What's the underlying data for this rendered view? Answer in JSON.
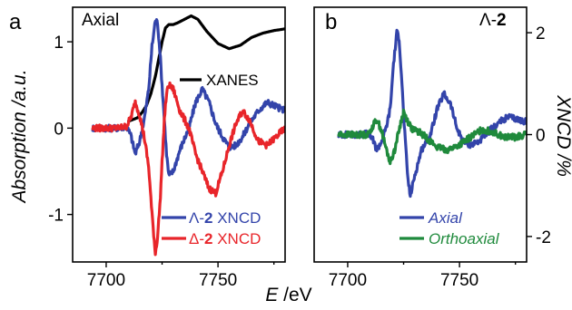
{
  "chart_data": [
    {
      "type": "line",
      "panel_letter": "a",
      "title": "Axial",
      "ylabel": "Absorption /a.u.",
      "xlim": [
        7685,
        7780
      ],
      "ylim": [
        -1.55,
        1.4
      ],
      "xticks": [
        7700,
        7750
      ],
      "yticks": [
        -1,
        0,
        1
      ],
      "legend": [
        {
          "prefix": "Λ-",
          "bold": "2",
          "suffix": " XNCD",
          "color": "#3344aa"
        },
        {
          "prefix": "Δ-",
          "bold": "2",
          "suffix": " XNCD",
          "color": "#e8252a"
        }
      ],
      "inline_label": "XANES",
      "series": [
        {
          "name": "XANES",
          "color": "#000000",
          "x": [
            7710,
            7714,
            7716,
            7718,
            7720,
            7722,
            7723.5,
            7725,
            7726.5,
            7728,
            7730,
            7732,
            7735,
            7738,
            7741,
            7745,
            7750,
            7755,
            7760,
            7765,
            7770,
            7775,
            7780
          ],
          "y": [
            0.08,
            0.12,
            0.18,
            0.26,
            0.4,
            0.6,
            0.8,
            1.0,
            1.16,
            1.2,
            1.2,
            1.22,
            1.26,
            1.3,
            1.26,
            1.12,
            0.98,
            0.92,
            0.96,
            1.05,
            1.1,
            1.13,
            1.15
          ]
        },
        {
          "name": "Λ-2 XNCD",
          "color": "#3344aa",
          "x": [
            7694,
            7700,
            7705,
            7709,
            7711,
            7713,
            7715,
            7717,
            7719,
            7720.5,
            7722,
            7723,
            7724,
            7725,
            7726,
            7727,
            7728,
            7730,
            7733,
            7737,
            7740,
            7743,
            7746,
            7749,
            7752,
            7755,
            7758,
            7761,
            7764,
            7768,
            7772,
            7776,
            7780
          ],
          "y": [
            0,
            0,
            0,
            0.02,
            -0.08,
            -0.3,
            -0.15,
            0.1,
            0.45,
            0.95,
            1.25,
            1.22,
            0.9,
            0.5,
            0.1,
            -0.3,
            -0.55,
            -0.5,
            -0.25,
            0,
            0.3,
            0.45,
            0.3,
            0.05,
            -0.1,
            -0.22,
            -0.2,
            -0.1,
            0.05,
            0.2,
            0.3,
            0.25,
            0.2
          ]
        },
        {
          "name": "Δ-2 XNCD",
          "color": "#e8252a",
          "x": [
            7694,
            7700,
            7705,
            7709,
            7711,
            7713,
            7715,
            7717,
            7719,
            7720.5,
            7722,
            7723,
            7724,
            7725,
            7726,
            7727,
            7728,
            7730,
            7733,
            7737,
            7740,
            7743,
            7746,
            7749,
            7752,
            7755,
            7758,
            7761,
            7764,
            7768,
            7772,
            7776,
            7780
          ],
          "y": [
            0,
            0,
            0,
            0.02,
            0.12,
            0.3,
            0.15,
            -0.1,
            -0.45,
            -1.0,
            -1.45,
            -1.25,
            -0.9,
            -0.4,
            0.1,
            0.4,
            0.5,
            0.45,
            0.2,
            0,
            -0.3,
            -0.5,
            -0.7,
            -0.75,
            -0.5,
            -0.2,
            0.05,
            0.2,
            0.1,
            -0.15,
            -0.2,
            -0.1,
            0
          ]
        }
      ]
    },
    {
      "type": "line",
      "panel_letter": "b",
      "title_prefix": "Λ-",
      "title_bold": "2",
      "ylabel": "XNCD /%",
      "xlim": [
        7685,
        7780
      ],
      "ylim": [
        -2.5,
        2.5
      ],
      "xticks": [
        7700,
        7750
      ],
      "yticks": [
        -2,
        0,
        2
      ],
      "xlabel_italic": "E",
      "xlabel_unit": " /eV",
      "legend": [
        {
          "label": "Axial",
          "color": "#3344aa"
        },
        {
          "label": "Orthoaxial",
          "color": "#1f8a3c"
        }
      ],
      "series": [
        {
          "name": "Axial",
          "color": "#3344aa",
          "x": [
            7696,
            7700,
            7705,
            7709,
            7711,
            7713,
            7715,
            7717,
            7719,
            7720.5,
            7722,
            7723,
            7724,
            7725,
            7726,
            7727,
            7728,
            7730,
            7733,
            7737,
            7740,
            7743,
            7746,
            7749,
            7752,
            7755,
            7758,
            7761,
            7764,
            7768,
            7772,
            7776,
            7780
          ],
          "y": [
            0,
            0,
            0,
            0.02,
            -0.08,
            -0.3,
            -0.15,
            0.1,
            0.5,
            1.4,
            2.0,
            1.9,
            1.2,
            0.4,
            -0.3,
            -0.9,
            -1.2,
            -0.8,
            -0.3,
            0,
            0.5,
            0.8,
            0.6,
            0.1,
            -0.15,
            -0.2,
            -0.15,
            -0.05,
            0.1,
            0.25,
            0.35,
            0.3,
            0.25
          ]
        },
        {
          "name": "Orthoaxial",
          "color": "#1f8a3c",
          "x": [
            7696,
            7700,
            7705,
            7709,
            7711,
            7713,
            7715,
            7717,
            7719,
            7721,
            7723,
            7725,
            7727,
            7729,
            7732,
            7735,
            7740,
            7745,
            7750,
            7755,
            7760,
            7765,
            7770,
            7775,
            7780
          ],
          "y": [
            0,
            0,
            0,
            0,
            0.15,
            0.3,
            0.1,
            -0.25,
            -0.55,
            -0.3,
            0.1,
            0.45,
            0.25,
            0.1,
            0.05,
            -0.05,
            -0.25,
            -0.3,
            -0.2,
            -0.05,
            0.1,
            0.05,
            -0.05,
            -0.05,
            0
          ]
        }
      ]
    }
  ]
}
